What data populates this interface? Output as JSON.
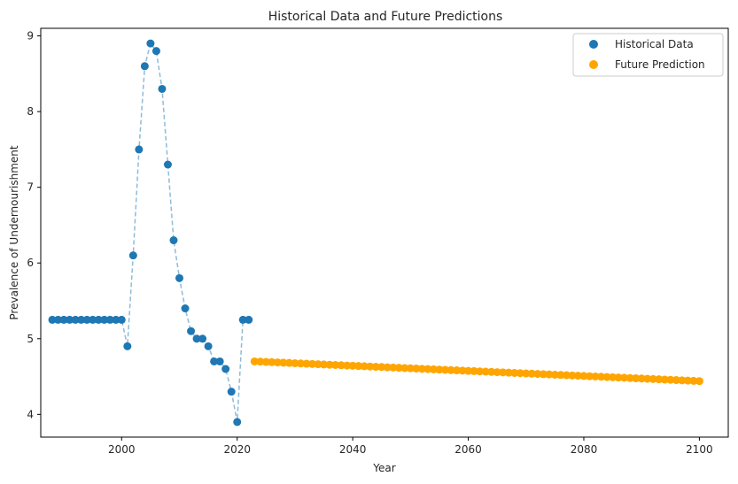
{
  "chart_data": {
    "type": "scatter",
    "title": "Historical Data and Future Predictions",
    "xlabel": "Year",
    "ylabel": "Prevalence of Undernourishment",
    "xlim": [
      1986,
      2105
    ],
    "ylim": [
      3.7,
      9.1
    ],
    "xticks": [
      2000,
      2020,
      2040,
      2060,
      2080,
      2100
    ],
    "yticks": [
      4,
      5,
      6,
      7,
      8,
      9
    ],
    "grid": false,
    "legend_position": "top-right",
    "series": [
      {
        "name": "Historical Data",
        "color": "#1f77b4",
        "connector": "dashed",
        "x": [
          1988,
          1989,
          1990,
          1991,
          1992,
          1993,
          1994,
          1995,
          1996,
          1997,
          1998,
          1999,
          2000,
          2001,
          2002,
          2003,
          2004,
          2005,
          2006,
          2007,
          2008,
          2009,
          2010,
          2011,
          2012,
          2013,
          2014,
          2015,
          2016,
          2017,
          2018,
          2019,
          2020,
          2021,
          2022
        ],
        "y": [
          5.25,
          5.25,
          5.25,
          5.25,
          5.25,
          5.25,
          5.25,
          5.25,
          5.25,
          5.25,
          5.25,
          5.25,
          5.25,
          4.9,
          6.1,
          7.5,
          8.6,
          8.9,
          8.8,
          8.3,
          7.3,
          6.3,
          5.8,
          5.4,
          5.1,
          5.0,
          5.0,
          4.9,
          4.7,
          4.7,
          4.6,
          4.3,
          3.9,
          5.25,
          5.25
        ]
      },
      {
        "name": "Future Prediction",
        "color": "#ffa500",
        "x_start": 2023,
        "x_end": 2100,
        "y_start": 4.7,
        "y_end": 4.44
      }
    ]
  }
}
